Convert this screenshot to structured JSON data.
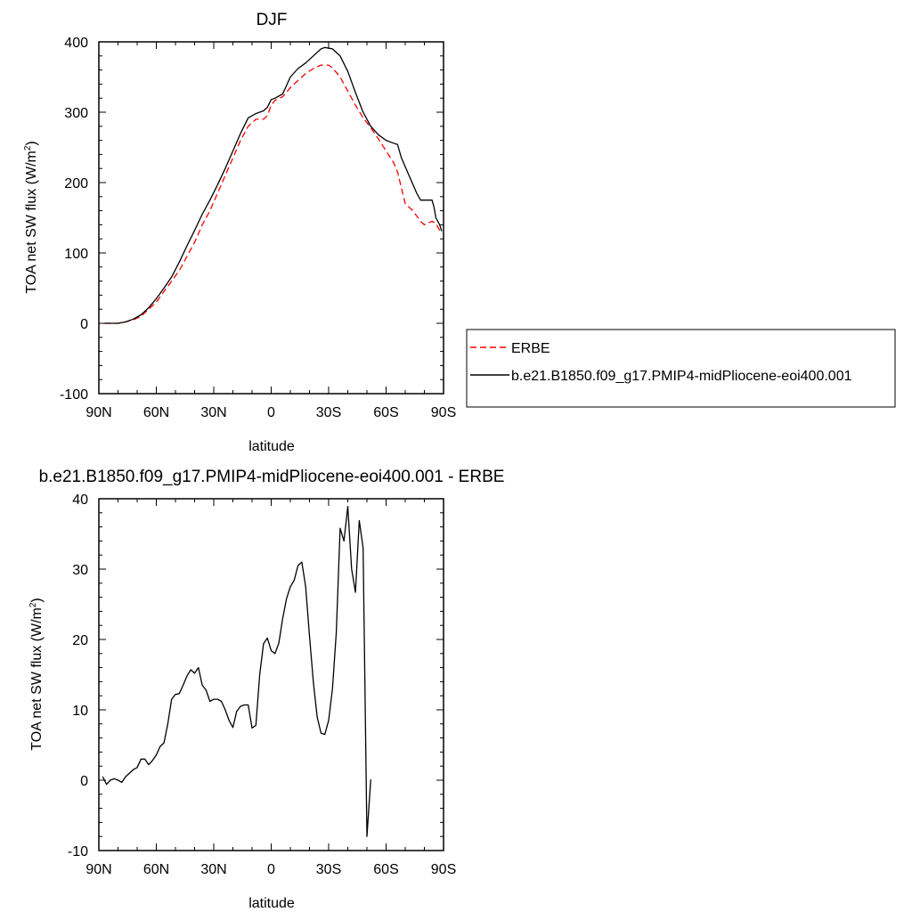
{
  "chart_data": [
    {
      "type": "line",
      "title": "DJF",
      "xlabel": "latitude",
      "ylabel": "TOA net SW flux (W/m",
      "ylabel_sup": "2",
      "ylabel_end": ")",
      "xlim": [
        90,
        -90
      ],
      "ylim": [
        -100,
        400
      ],
      "xticks": [
        {
          "v": 90,
          "label": "90N"
        },
        {
          "v": 60,
          "label": "60N"
        },
        {
          "v": 30,
          "label": "30N"
        },
        {
          "v": 0,
          "label": "0"
        },
        {
          "v": -30,
          "label": "30S"
        },
        {
          "v": -60,
          "label": "60S"
        },
        {
          "v": -90,
          "label": "90S"
        }
      ],
      "yticks": [
        {
          "v": -100,
          "label": "-100"
        },
        {
          "v": 0,
          "label": "0"
        },
        {
          "v": 100,
          "label": "100"
        },
        {
          "v": 200,
          "label": "200"
        },
        {
          "v": 300,
          "label": "300"
        },
        {
          "v": 400,
          "label": "400"
        }
      ],
      "legend": {
        "placement": "outside-right"
      },
      "series": [
        {
          "name": "ERBE",
          "color": "#ff0000",
          "dash": "dashed",
          "points": [
            [
              87,
              0
            ],
            [
              84,
              0
            ],
            [
              80,
              0
            ],
            [
              76,
              2
            ],
            [
              72,
              5
            ],
            [
              68,
              10
            ],
            [
              64,
              20
            ],
            [
              60,
              30
            ],
            [
              56,
              45
            ],
            [
              52,
              60
            ],
            [
              48,
              75
            ],
            [
              44,
              95
            ],
            [
              40,
              115
            ],
            [
              36,
              140
            ],
            [
              32,
              160
            ],
            [
              28,
              185
            ],
            [
              24,
              210
            ],
            [
              20,
              235
            ],
            [
              16,
              260
            ],
            [
              12,
              280
            ],
            [
              8,
              290
            ],
            [
              4,
              290
            ],
            [
              2,
              295
            ],
            [
              0,
              310
            ],
            [
              -2,
              317
            ],
            [
              -6,
              322
            ],
            [
              -10,
              335
            ],
            [
              -14,
              345
            ],
            [
              -18,
              355
            ],
            [
              -22,
              362
            ],
            [
              -26,
              367
            ],
            [
              -30,
              367
            ],
            [
              -32,
              363
            ],
            [
              -36,
              350
            ],
            [
              -40,
              330
            ],
            [
              -44,
              310
            ],
            [
              -48,
              292
            ],
            [
              -52,
              278
            ],
            [
              -56,
              262
            ],
            [
              -60,
              245
            ],
            [
              -64,
              228
            ],
            [
              -66,
              215
            ],
            [
              -70,
              170
            ],
            [
              -74,
              160
            ],
            [
              -78,
              145
            ],
            [
              -80,
              140
            ],
            [
              -84,
              145
            ],
            [
              -86,
              142
            ],
            [
              -88,
              132
            ],
            [
              -89,
              131
            ]
          ]
        },
        {
          "name": "b.e21.B1850.f09_g17.PMIP4-midPliocene-eoi400.001",
          "color": "#000000",
          "dash": "solid",
          "points": [
            [
              87,
              0
            ],
            [
              84,
              0
            ],
            [
              80,
              0
            ],
            [
              76,
              2
            ],
            [
              72,
              6
            ],
            [
              68,
              12
            ],
            [
              64,
              22
            ],
            [
              60,
              35
            ],
            [
              56,
              50
            ],
            [
              52,
              66
            ],
            [
              48,
              87
            ],
            [
              44,
              110
            ],
            [
              40,
              132
            ],
            [
              36,
              155
            ],
            [
              32,
              175
            ],
            [
              28,
              197
            ],
            [
              24,
              220
            ],
            [
              20,
              245
            ],
            [
              16,
              270
            ],
            [
              12,
              292
            ],
            [
              8,
              298
            ],
            [
              4,
              302
            ],
            [
              2,
              307
            ],
            [
              0,
              318
            ],
            [
              -2,
              320
            ],
            [
              -6,
              326
            ],
            [
              -10,
              350
            ],
            [
              -14,
              362
            ],
            [
              -18,
              370
            ],
            [
              -22,
              380
            ],
            [
              -26,
              390
            ],
            [
              -28,
              392
            ],
            [
              -32,
              390
            ],
            [
              -36,
              380
            ],
            [
              -40,
              358
            ],
            [
              -44,
              328
            ],
            [
              -48,
              300
            ],
            [
              -52,
              280
            ],
            [
              -56,
              268
            ],
            [
              -60,
              260
            ],
            [
              -64,
              256
            ],
            [
              -66,
              254
            ],
            [
              -68,
              235
            ],
            [
              -72,
              210
            ],
            [
              -76,
              185
            ],
            [
              -78,
              175
            ],
            [
              -82,
              175
            ],
            [
              -84,
              175
            ],
            [
              -85,
              165
            ],
            [
              -86,
              150
            ],
            [
              -88,
              140
            ],
            [
              -89,
              131
            ]
          ]
        }
      ]
    },
    {
      "type": "line",
      "title": "b.e21.B1850.f09_g17.PMIP4-midPliocene-eoi400.001 - ERBE",
      "xlabel": "latitude",
      "ylabel": "TOA net SW flux (W/m",
      "ylabel_sup": "2",
      "ylabel_end": ")",
      "xlim": [
        90,
        -90
      ],
      "ylim": [
        -10,
        40
      ],
      "xticks": [
        {
          "v": 90,
          "label": "90N"
        },
        {
          "v": 60,
          "label": "60N"
        },
        {
          "v": 30,
          "label": "30N"
        },
        {
          "v": 0,
          "label": "0"
        },
        {
          "v": -30,
          "label": "30S"
        },
        {
          "v": -60,
          "label": "60S"
        },
        {
          "v": -90,
          "label": "90S"
        }
      ],
      "yticks": [
        {
          "v": -10,
          "label": "-10"
        },
        {
          "v": 0,
          "label": "0"
        },
        {
          "v": 10,
          "label": "10"
        },
        {
          "v": 20,
          "label": "20"
        },
        {
          "v": 30,
          "label": "30"
        },
        {
          "v": 40,
          "label": "40"
        }
      ],
      "series": [
        {
          "color": "#000000",
          "dash": "solid",
          "points": [
            [
              88,
              0.5
            ],
            [
              86,
              -0.6
            ],
            [
              84,
              0
            ],
            [
              82,
              0.2
            ],
            [
              80,
              0
            ],
            [
              78,
              -0.3
            ],
            [
              76,
              0.5
            ],
            [
              74,
              1
            ],
            [
              72,
              1.5
            ],
            [
              70,
              1.8
            ],
            [
              68,
              3
            ],
            [
              66,
              3
            ],
            [
              64,
              2.2
            ],
            [
              62,
              2.8
            ],
            [
              60,
              3.6
            ],
            [
              58,
              4.8
            ],
            [
              56,
              5.3
            ],
            [
              54,
              8
            ],
            [
              52,
              11.5
            ],
            [
              50,
              12.2
            ],
            [
              48,
              12.3
            ],
            [
              46,
              13.5
            ],
            [
              44,
              14.8
            ],
            [
              42,
              15.7
            ],
            [
              40,
              15.2
            ],
            [
              38,
              16
            ],
            [
              36,
              13.5
            ],
            [
              34,
              12.8
            ],
            [
              32,
              11.2
            ],
            [
              30,
              11.5
            ],
            [
              28,
              11.5
            ],
            [
              26,
              11.2
            ],
            [
              24,
              10
            ],
            [
              22,
              8.5
            ],
            [
              20,
              7.5
            ],
            [
              18,
              9.8
            ],
            [
              16,
              10.5
            ],
            [
              14,
              10.7
            ],
            [
              12,
              10.7
            ],
            [
              10,
              7.4
            ],
            [
              8,
              7.8
            ],
            [
              6,
              15
            ],
            [
              4,
              19.4
            ],
            [
              2,
              20.2
            ],
            [
              0,
              18.4
            ],
            [
              -2,
              18
            ],
            [
              -4,
              19.5
            ],
            [
              -6,
              23
            ],
            [
              -8,
              25.8
            ],
            [
              -10,
              27.5
            ],
            [
              -12,
              28.4
            ],
            [
              -14,
              30.5
            ],
            [
              -16,
              31
            ],
            [
              -18,
              27.5
            ],
            [
              -20,
              20.5
            ],
            [
              -22,
              14
            ],
            [
              -24,
              9
            ],
            [
              -26,
              6.7
            ],
            [
              -28,
              6.5
            ],
            [
              -30,
              8.5
            ],
            [
              -32,
              13
            ],
            [
              -34,
              21
            ],
            [
              -36,
              35.8
            ],
            [
              -38,
              34
            ],
            [
              -40,
              38.9
            ],
            [
              -42,
              30
            ],
            [
              -44,
              26.7
            ],
            [
              -46,
              36.9
            ],
            [
              -48,
              33
            ],
            [
              -50,
              -8
            ],
            [
              -52,
              0.1
            ]
          ]
        }
      ]
    }
  ]
}
